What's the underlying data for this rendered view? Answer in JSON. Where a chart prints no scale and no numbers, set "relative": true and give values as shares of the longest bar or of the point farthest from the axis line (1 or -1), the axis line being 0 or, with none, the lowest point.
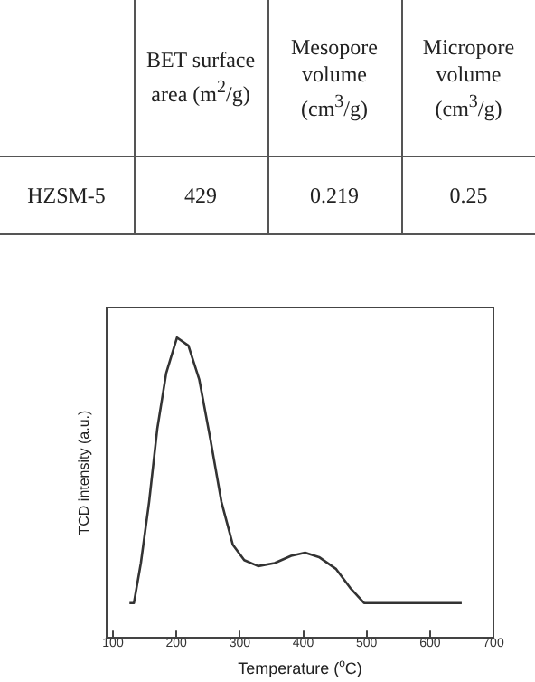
{
  "chart_data": [
    {
      "type": "other",
      "annotations": [
        "BET surface area (m$^{2}$/g)",
        "Mesopore volume (cm$^{3}$/g)",
        "Micropore volume (cm$^{3}$/g)",
        "HZSM-5",
        "429",
        "0.219",
        "0.25"
      ]
    },
    {
      "type": "line",
      "relative": true,
      "xlabel": "Temperature ($^{o}$C)",
      "ylabel": "TCD intensity (a.u.)",
      "xlim": [
        90,
        700
      ],
      "xticks": [
        100,
        200,
        300,
        400,
        500,
        600,
        700
      ],
      "grid": false,
      "legend": false,
      "marker": "none",
      "tick_labels": "x",
      "series": [
        {
          "color": "#333333",
          "x": [
            126,
            133,
            144,
            157,
            170,
            184,
            201,
            219,
            236,
            254,
            271,
            289,
            307,
            329,
            355,
            381,
            403,
            425,
            452,
            474,
            496,
            650
          ],
          "values": [
            0.116,
            0.116,
            0.249,
            0.453,
            0.698,
            0.882,
            1.0,
            0.973,
            0.861,
            0.657,
            0.453,
            0.31,
            0.259,
            0.239,
            0.249,
            0.273,
            0.284,
            0.269,
            0.229,
            0.167,
            0.116,
            0.116
          ]
        }
      ]
    }
  ]
}
